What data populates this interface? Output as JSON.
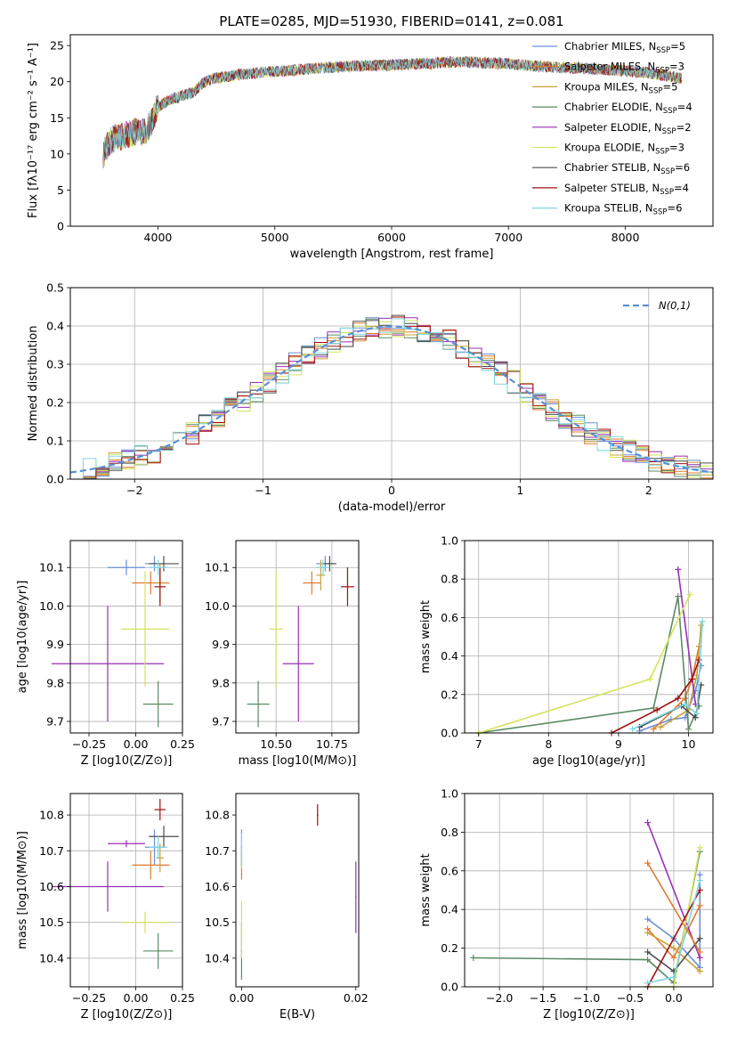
{
  "figure": {
    "title": "PLATE=0285, MJD=51930, FIBERID=0141, z=0.081"
  },
  "models": [
    {
      "name": "Chabrier MILES",
      "nssp": "5",
      "color": "#6b8fd6"
    },
    {
      "name": "Salpeter MILES",
      "nssp": "3",
      "color": "#e07a2e"
    },
    {
      "name": "Kroupa MILES",
      "nssp": "5",
      "color": "#c9a13a"
    },
    {
      "name": "Chabrier ELODIE",
      "nssp": "4",
      "color": "#5a8a63"
    },
    {
      "name": "Salpeter ELODIE",
      "nssp": "2",
      "color": "#9a2fb3"
    },
    {
      "name": "Kroupa ELODIE",
      "nssp": "3",
      "color": "#d5e35a"
    },
    {
      "name": "Chabrier STELIB",
      "nssp": "6",
      "color": "#4d4d4d"
    },
    {
      "name": "Salpeter STELIB",
      "nssp": "4",
      "color": "#a01010"
    },
    {
      "name": "Kroupa STELIB",
      "nssp": "6",
      "color": "#7fd6e0"
    }
  ],
  "chart_data": [
    {
      "id": "spectrum",
      "type": "line",
      "xlabel": "wavelength [Angstrom, rest frame]",
      "ylabel": "Flux [fλ10⁻¹⁷ erg cm⁻² s⁻¹ A⁻¹]",
      "xlim": [
        3250,
        8750
      ],
      "ylim": [
        0,
        26.5
      ],
      "xticks": [
        4000,
        5000,
        6000,
        7000,
        8000
      ],
      "yticks": [
        0,
        5,
        10,
        15,
        20,
        25
      ],
      "legend_position": "top-right",
      "continuum": {
        "x": [
          3530,
          3600,
          3700,
          3800,
          3900,
          4000,
          4100,
          4200,
          4300,
          4400,
          4500,
          4700,
          4900,
          5100,
          5300,
          5500,
          5700,
          6000,
          6300,
          6600,
          6800,
          7000,
          7200,
          7400,
          7700,
          8000,
          8200,
          8480
        ],
        "y": [
          10.0,
          12.0,
          12.5,
          13.0,
          13.0,
          16.5,
          17.5,
          18.0,
          18.5,
          20.0,
          20.5,
          21.0,
          21.3,
          21.5,
          21.8,
          22.0,
          22.2,
          22.3,
          22.5,
          22.8,
          22.6,
          22.5,
          22.2,
          22.0,
          21.8,
          21.5,
          21.2,
          20.5
        ]
      }
    },
    {
      "id": "residuals",
      "type": "histogram",
      "xlabel": "(data-model)/error",
      "ylabel": "Normed distribution",
      "xlim": [
        -2.5,
        2.5
      ],
      "ylim": [
        0,
        0.5
      ],
      "xticks": [
        -2,
        -1,
        0,
        1,
        2
      ],
      "yticks": [
        0.0,
        0.1,
        0.2,
        0.3,
        0.4,
        0.5
      ],
      "grid": true,
      "legend_position": "top-right",
      "reference_curve": {
        "label": "N(0,1)",
        "mean": 0,
        "sigma": 1,
        "color": "#5a8fd6"
      },
      "bin_width": 0.1
    },
    {
      "id": "age-vs-Z",
      "type": "scatter",
      "xlabel": "Z [log10(Z/Z⊙)]",
      "ylabel": "age  [log10(age/yr)]",
      "xlim": [
        -0.35,
        0.25
      ],
      "ylim": [
        9.67,
        10.17
      ],
      "xticks": [
        -0.25,
        0.0,
        0.25
      ],
      "yticks": [
        9.7,
        9.8,
        9.9,
        10.0,
        10.1
      ],
      "grid": true,
      "points": [
        {
          "model": 0,
          "x": 0.1,
          "y": 10.11,
          "xerr": 0.05,
          "yerr": 0.02
        },
        {
          "model": 1,
          "x": 0.08,
          "y": 10.06,
          "xerr": 0.1,
          "yerr": 0.03
        },
        {
          "model": 2,
          "x": 0.13,
          "y": 10.06,
          "xerr": 0.02,
          "yerr": 0.05
        },
        {
          "model": 3,
          "x": 0.12,
          "y": 9.745,
          "xerr": 0.08,
          "yerr": 0.06
        },
        {
          "model": 4,
          "x": -0.15,
          "y": 9.85,
          "xerr": 0.3,
          "yerr": 0.15
        },
        {
          "model": 5,
          "x": 0.05,
          "y": 9.94,
          "xerr": 0.13,
          "yerr": 0.15
        },
        {
          "model": 6,
          "x": 0.15,
          "y": 10.11,
          "xerr": 0.08,
          "yerr": 0.02
        },
        {
          "model": 7,
          "x": 0.13,
          "y": 10.05,
          "xerr": 0.03,
          "yerr": 0.05
        },
        {
          "model": 8,
          "x": 0.12,
          "y": 10.1,
          "xerr": 0.05,
          "yerr": 0.02
        },
        {
          "model": 0,
          "x": -0.05,
          "y": 10.1,
          "xerr": 0.1,
          "yerr": 0.02
        }
      ]
    },
    {
      "id": "age-vs-mass",
      "type": "scatter",
      "xlabel": "mass [log10(M/M⊙)]",
      "ylabel": "",
      "xlim": [
        10.32,
        10.87
      ],
      "ylim": [
        9.67,
        10.17
      ],
      "xticks": [
        10.5,
        10.75
      ],
      "yticks": [
        9.7,
        9.8,
        9.9,
        10.0,
        10.1
      ],
      "grid": true,
      "points": [
        {
          "model": 0,
          "x": 10.72,
          "y": 10.11,
          "xerr": 0.04,
          "yerr": 0.02
        },
        {
          "model": 1,
          "x": 10.66,
          "y": 10.06,
          "xerr": 0.04,
          "yerr": 0.03
        },
        {
          "model": 2,
          "x": 10.7,
          "y": 10.08,
          "xerr": 0.02,
          "yerr": 0.04
        },
        {
          "model": 3,
          "x": 10.42,
          "y": 9.745,
          "xerr": 0.05,
          "yerr": 0.06
        },
        {
          "model": 4,
          "x": 10.6,
          "y": 9.85,
          "xerr": 0.07,
          "yerr": 0.15
        },
        {
          "model": 5,
          "x": 10.5,
          "y": 9.94,
          "xerr": 0.03,
          "yerr": 0.15
        },
        {
          "model": 6,
          "x": 10.74,
          "y": 10.11,
          "xerr": 0.03,
          "yerr": 0.02
        },
        {
          "model": 7,
          "x": 10.82,
          "y": 10.05,
          "xerr": 0.03,
          "yerr": 0.05
        },
        {
          "model": 8,
          "x": 10.71,
          "y": 10.1,
          "xerr": 0.03,
          "yerr": 0.02
        }
      ]
    },
    {
      "id": "weight-vs-age",
      "type": "line",
      "xlabel": "age  [log10(age/yr)]",
      "ylabel": "mass weight",
      "xlim": [
        6.8,
        10.35
      ],
      "ylim": [
        0,
        1.0
      ],
      "xticks": [
        7,
        8,
        9,
        10
      ],
      "yticks": [
        0.0,
        0.2,
        0.4,
        0.6,
        0.8,
        1.0
      ],
      "grid": true,
      "series": [
        {
          "model": 0,
          "x": [
            9.3,
            9.75,
            9.95,
            10.1,
            10.18
          ],
          "y": [
            0.01,
            0.07,
            0.08,
            0.22,
            0.35
          ]
        },
        {
          "model": 1,
          "x": [
            9.5,
            9.95,
            10.05,
            10.15
          ],
          "y": [
            0.02,
            0.18,
            0.28,
            0.45
          ]
        },
        {
          "model": 2,
          "x": [
            9.6,
            10.0,
            10.12,
            10.18
          ],
          "y": [
            0.03,
            0.12,
            0.3,
            0.56
          ]
        },
        {
          "model": 3,
          "x": [
            7.0,
            9.5,
            9.85,
            10.0,
            10.15
          ],
          "y": [
            0.0,
            0.13,
            0.71,
            0.02,
            0.14
          ]
        },
        {
          "model": 4,
          "x": [
            9.85,
            10.1
          ],
          "y": [
            0.85,
            0.15
          ]
        },
        {
          "model": 5,
          "x": [
            7.0,
            9.45,
            10.02
          ],
          "y": [
            0.0,
            0.28,
            0.72
          ]
        },
        {
          "model": 6,
          "x": [
            9.3,
            9.9,
            10.1,
            10.18
          ],
          "y": [
            0.03,
            0.14,
            0.08,
            0.25
          ]
        },
        {
          "model": 7,
          "x": [
            8.9,
            9.55,
            9.85,
            10.05,
            10.15
          ],
          "y": [
            0.0,
            0.12,
            0.18,
            0.28,
            0.38
          ]
        },
        {
          "model": 8,
          "x": [
            9.2,
            9.95,
            10.12,
            10.2
          ],
          "y": [
            0.02,
            0.15,
            0.1,
            0.58
          ]
        }
      ]
    },
    {
      "id": "mass-vs-Z",
      "type": "scatter",
      "xlabel": "Z [log10(Z/Z⊙)]",
      "ylabel": "mass [log10(M/M⊙)]",
      "xlim": [
        -0.35,
        0.25
      ],
      "ylim": [
        10.32,
        10.86
      ],
      "xticks": [
        -0.25,
        0.0,
        0.25
      ],
      "yticks": [
        10.4,
        10.5,
        10.6,
        10.7,
        10.8
      ],
      "grid": true,
      "points": [
        {
          "model": 0,
          "x": 0.1,
          "y": 10.71,
          "xerr": 0.05,
          "yerr": 0.05
        },
        {
          "model": 1,
          "x": 0.08,
          "y": 10.66,
          "xerr": 0.1,
          "yerr": 0.04
        },
        {
          "model": 2,
          "x": 0.13,
          "y": 10.68,
          "xerr": 0.02,
          "yerr": 0.04
        },
        {
          "model": 3,
          "x": 0.12,
          "y": 10.42,
          "xerr": 0.08,
          "yerr": 0.05
        },
        {
          "model": 4,
          "x": -0.15,
          "y": 10.6,
          "xerr": 0.3,
          "yerr": 0.07
        },
        {
          "model": 5,
          "x": 0.05,
          "y": 10.5,
          "xerr": 0.13,
          "yerr": 0.03
        },
        {
          "model": 6,
          "x": 0.15,
          "y": 10.74,
          "xerr": 0.08,
          "yerr": 0.03
        },
        {
          "model": 7,
          "x": 0.13,
          "y": 10.815,
          "xerr": 0.03,
          "yerr": 0.03
        },
        {
          "model": 8,
          "x": 0.12,
          "y": 10.71,
          "xerr": 0.05,
          "yerr": 0.03
        },
        {
          "model": 4,
          "x": -0.05,
          "y": 10.72,
          "xerr": 0.1,
          "yerr": 0.01
        }
      ]
    },
    {
      "id": "mass-vs-ebv",
      "type": "scatter",
      "xlabel": "E(B-V)",
      "ylabel": "",
      "xlim": [
        -0.001,
        0.0205
      ],
      "ylim": [
        10.32,
        10.86
      ],
      "xticks": [
        0.0,
        0.02
      ],
      "yticks": [
        10.4,
        10.5,
        10.6,
        10.7,
        10.8
      ],
      "points": [
        {
          "model": 0,
          "x": 0.0,
          "y": 10.71,
          "xerr": 0,
          "yerr": 0.05
        },
        {
          "model": 1,
          "x": 0.0,
          "y": 10.66,
          "xerr": 0,
          "yerr": 0.04
        },
        {
          "model": 3,
          "x": 0.0,
          "y": 10.42,
          "xerr": 0,
          "yerr": 0.08
        },
        {
          "model": 5,
          "x": 0.0,
          "y": 10.48,
          "xerr": 0,
          "yerr": 0.08
        },
        {
          "model": 8,
          "x": 0.0,
          "y": 10.7,
          "xerr": 0,
          "yerr": 0.05
        },
        {
          "model": 7,
          "x": 0.0133,
          "y": 10.8,
          "xerr": 0,
          "yerr": 0.03
        },
        {
          "model": 4,
          "x": 0.02,
          "y": 10.57,
          "xerr": 0,
          "yerr": 0.1
        }
      ]
    },
    {
      "id": "weight-vs-Z",
      "type": "line",
      "xlabel": "Z [log10(Z/Z⊙)]",
      "ylabel": "mass weight",
      "xlim": [
        -2.4,
        0.45
      ],
      "ylim": [
        0,
        1.0
      ],
      "xticks": [
        -2.0,
        -1.5,
        -1.0,
        -0.5,
        0.0
      ],
      "yticks": [
        0.0,
        0.2,
        0.4,
        0.6,
        0.8,
        1.0
      ],
      "grid": true,
      "series": [
        {
          "model": 0,
          "x": [
            -0.3,
            0.0,
            0.3,
            0.3
          ],
          "y": [
            0.35,
            0.25,
            0.1,
            0.58
          ]
        },
        {
          "model": 1,
          "x": [
            -0.3,
            0.0,
            0.3
          ],
          "y": [
            0.3,
            0.15,
            0.42
          ]
        },
        {
          "model": 2,
          "x": [
            -0.3,
            0.0,
            0.3
          ],
          "y": [
            0.28,
            0.2,
            0.08
          ]
        },
        {
          "model": 3,
          "x": [
            -2.3,
            -0.3,
            0.0,
            0.3
          ],
          "y": [
            0.15,
            0.14,
            0.02,
            0.7
          ]
        },
        {
          "model": 4,
          "x": [
            -0.3,
            0.3
          ],
          "y": [
            0.85,
            0.15
          ]
        },
        {
          "model": 5,
          "x": [
            -0.3,
            0.0,
            0.3
          ],
          "y": [
            0.0,
            0.0,
            0.72
          ]
        },
        {
          "model": 6,
          "x": [
            -0.3,
            0.0,
            0.3
          ],
          "y": [
            0.18,
            0.08,
            0.25
          ]
        },
        {
          "model": 7,
          "x": [
            -0.3,
            0.3
          ],
          "y": [
            0.0,
            0.5
          ]
        },
        {
          "model": 8,
          "x": [
            -0.3,
            0.0,
            0.3
          ],
          "y": [
            0.02,
            0.05,
            0.55
          ]
        },
        {
          "model": 1,
          "x": [
            -0.3,
            0.3
          ],
          "y": [
            0.64,
            0.18
          ]
        }
      ]
    }
  ]
}
